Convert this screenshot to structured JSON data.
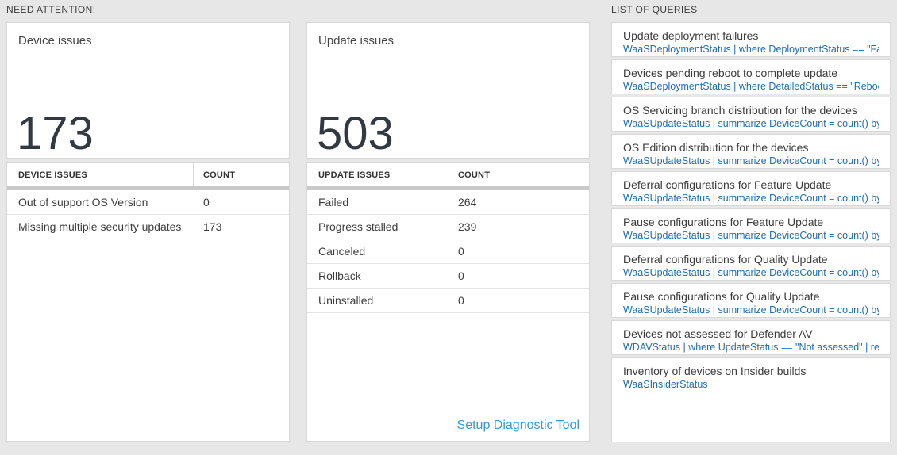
{
  "colors": {
    "page_background": "#e7e7e7",
    "card_border": "#d7d7d7",
    "table_header_bar": "#c9c9c9",
    "query_link_blue": "#1f6cb7",
    "setup_link_blue": "#3598db",
    "big_number_color": "#333940"
  },
  "need_attention": {
    "header": "NEED ATTENTION!",
    "tiles": [
      {
        "title": "Device issues",
        "big_number": "173",
        "table": {
          "columns": [
            "DEVICE ISSUES",
            "COUNT"
          ],
          "rows": [
            {
              "label": "Out of support OS Version",
              "count": "0"
            },
            {
              "label": "Missing multiple security updates",
              "count": "173"
            }
          ]
        }
      },
      {
        "title": "Update issues",
        "big_number": "503",
        "table": {
          "columns": [
            "UPDATE ISSUES",
            "COUNT"
          ],
          "rows": [
            {
              "label": "Failed",
              "count": "264"
            },
            {
              "label": "Progress stalled",
              "count": "239"
            },
            {
              "label": "Canceled",
              "count": "0"
            },
            {
              "label": "Rollback",
              "count": "0"
            },
            {
              "label": "Uninstalled",
              "count": "0"
            }
          ]
        },
        "footer_link": "Setup Diagnostic Tool"
      }
    ]
  },
  "queries": {
    "header": "LIST OF QUERIES",
    "items": [
      {
        "title": "Update deployment failures",
        "query": "WaaSDeploymentStatus | where DeploymentStatus == \"Failed\" |..."
      },
      {
        "title": "Devices pending reboot to complete update",
        "query": "WaaSDeploymentStatus | where DetailedStatus == \"Reboot pend..."
      },
      {
        "title": "OS Servicing branch distribution for the devices",
        "query": "WaaSUpdateStatus | summarize DeviceCount = count() by OSSer..."
      },
      {
        "title": "OS Edition distribution for the devices",
        "query": "WaaSUpdateStatus | summarize DeviceCount = count() by OSEdit..."
      },
      {
        "title": "Deferral configurations for Feature Update",
        "query": "WaaSUpdateStatus | summarize DeviceCount = count() by Featur..."
      },
      {
        "title": "Pause configurations for Feature Update",
        "query": "WaaSUpdateStatus | summarize DeviceCount = count() by Featur..."
      },
      {
        "title": "Deferral configurations for Quality Update",
        "query": "WaaSUpdateStatus | summarize DeviceCount = count() by Qualit..."
      },
      {
        "title": "Pause configurations for Quality Update",
        "query": "WaaSUpdateStatus | summarize DeviceCount = count() by Qualit..."
      },
      {
        "title": "Devices not assessed for Defender AV",
        "query": "WDAVStatus | where UpdateStatus == \"Not assessed\" | render ta..."
      },
      {
        "title": "Inventory of devices on Insider builds",
        "query": "WaaSInsiderStatus"
      }
    ]
  }
}
